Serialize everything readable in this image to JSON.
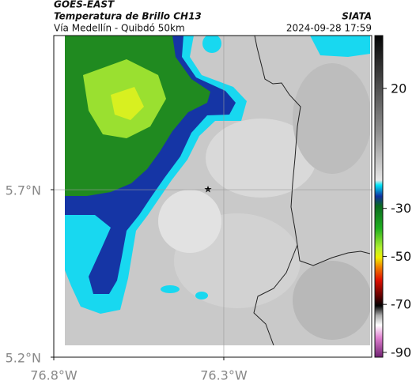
{
  "header": {
    "source": "GOES-EAST",
    "title": "Temperatura de Brillo CH13",
    "subtitle": "Vía Medellín - Quibdó 50km",
    "organization": "SIATA",
    "timestamp": "2024-09-28 17:59"
  },
  "map": {
    "xlim": [
      -76.8,
      -75.865
    ],
    "ylim": [
      5.2,
      6.16
    ],
    "xticks": [
      {
        "value": -76.8,
        "label": "76.8°W"
      },
      {
        "value": -76.3,
        "label": "76.3°W"
      }
    ],
    "yticks": [
      {
        "value": 5.7,
        "label": "5.7°N"
      },
      {
        "value": 5.2,
        "label": "5.2°N"
      }
    ]
  },
  "colorbar": {
    "lim": [
      -92,
      42
    ],
    "ticks": [
      20,
      -30,
      -50,
      -70,
      -90
    ]
  }
}
